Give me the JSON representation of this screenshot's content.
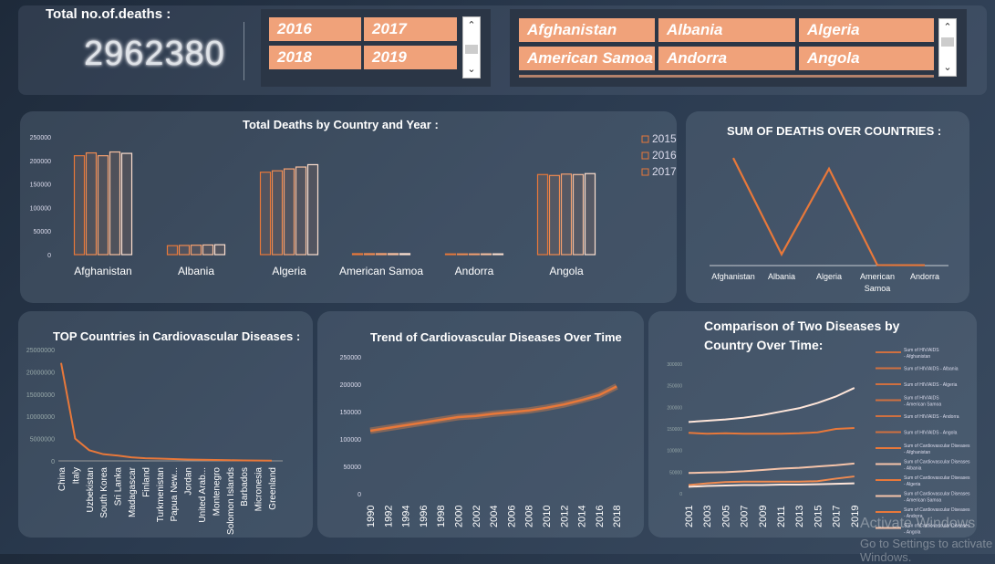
{
  "kpi": {
    "title": "Total no.of.deaths  :",
    "value": "2962380"
  },
  "year_slicer": {
    "items": [
      "2016",
      "2017",
      "2018",
      "2019"
    ]
  },
  "country_slicer": {
    "items": [
      "Afghanistan",
      "Albania",
      "Algeria",
      "American Samoa",
      "Andorra",
      "Angola"
    ]
  },
  "colors": {
    "accent": "#f0a27a",
    "line": "#e8783a",
    "light_line": "#f6c4aa",
    "pale_line": "#ffe6da"
  },
  "charts": {
    "by_country_year": {
      "title": "Total Deaths by Country and Year :",
      "legend": [
        "2015",
        "2016",
        "2017"
      ]
    },
    "sum_over_countries": {
      "title": "SUM OF DEATHS OVER COUNTRIES :"
    },
    "top_cardio": {
      "title": "TOP Countries in Cardiovascular Diseases  :"
    },
    "cardio_trend": {
      "title": "Trend of Cardiovascular Diseases Over Time"
    },
    "two_diseases": {
      "title_line1": "Comparison of Two Diseases by",
      "title_line2": "Country Over Time:"
    }
  },
  "chart_data": [
    {
      "type": "bar",
      "categories": [
        "Afghanistan",
        "Albania",
        "Algeria",
        "American Samoa",
        "Andorra",
        "Angola"
      ],
      "series": [
        {
          "name": "2015",
          "values": [
            210000,
            19000,
            175000,
            2000,
            1500,
            170000
          ]
        },
        {
          "name": "2016",
          "values": [
            216000,
            19500,
            178000,
            2000,
            1500,
            168000
          ]
        },
        {
          "name": "2017",
          "values": [
            210000,
            20000,
            182000,
            2100,
            1500,
            171000
          ]
        },
        {
          "values": [
            218000,
            20500,
            186000,
            2100,
            1600,
            170000
          ]
        },
        {
          "values": [
            215000,
            21000,
            191000,
            2100,
            1600,
            172000
          ]
        }
      ],
      "ylim": [
        0,
        250000
      ],
      "yticks": [
        "0",
        "50000",
        "100000",
        "150000",
        "200000",
        "250000"
      ],
      "legend_position": "top-right"
    },
    {
      "type": "line",
      "categories": [
        "Afghanistan",
        "Albania",
        "Algeria",
        "American Samoa",
        "Andorra"
      ],
      "values": [
        8550000,
        900000,
        7700000,
        40000,
        30000
      ],
      "ylim": [
        0,
        9500000
      ],
      "grid": false
    },
    {
      "type": "line",
      "categories": [
        "China",
        "Italy",
        "Uzbekistan",
        "South Korea",
        "Sri Lanka",
        "Madagascar",
        "Finland",
        "Turkmenistan",
        "Papua New...",
        "Jordan",
        "United Arab...",
        "Montenegro",
        "Solomon Islands",
        "Barbados",
        "Micronesia",
        "Greenland"
      ],
      "values": [
        22000000,
        5000000,
        2400000,
        1500000,
        1200000,
        800000,
        600000,
        500000,
        400000,
        300000,
        250000,
        200000,
        150000,
        100000,
        80000,
        50000
      ],
      "ylim": [
        0,
        25000000
      ],
      "yticks": [
        "0",
        "5000000",
        "10000000",
        "15000000",
        "20000000",
        "25000000"
      ]
    },
    {
      "type": "line",
      "x": [
        "1990",
        "1992",
        "1994",
        "1996",
        "1998",
        "2000",
        "2002",
        "2004",
        "2006",
        "2008",
        "2010",
        "2012",
        "2014",
        "2016",
        "2018"
      ],
      "values": [
        115000,
        120000,
        125000,
        130000,
        135000,
        140000,
        142000,
        146000,
        149000,
        152000,
        157000,
        163000,
        171000,
        180000,
        196000
      ],
      "ylim": [
        0,
        250000
      ],
      "yticks": [
        "0",
        "50000",
        "100000",
        "150000",
        "200000",
        "250000"
      ]
    },
    {
      "type": "line",
      "x": [
        "2001",
        "2003",
        "2005",
        "2007",
        "2009",
        "2011",
        "2013",
        "2015",
        "2017",
        "2019"
      ],
      "legend": [
        "Sum of HIV/AIDS - Afghanistan",
        "Sum of HIV/AIDS - Albania",
        "Sum of HIV/AIDS - Algeria",
        "Sum of HIV/AIDS - American Samoa",
        "Sum of HIV/AIDS - Andorra",
        "Sum of HIV/AIDS - Angola",
        "Sum of Cardiovascular Diseases - Afghanistan",
        "Sum of Cardiovascular Diseases - Albania",
        "Sum of Cardiovascular Diseases - Algeria",
        "Sum of Cardiovascular Diseases - American Samoa",
        "Sum of Cardiovascular Diseases - Andorra",
        "Sum of Cardiovascular Diseases - Angola"
      ],
      "series": [
        {
          "name": "Sum of Cardiovascular Diseases - Algeria",
          "values": [
            166000,
            169000,
            172000,
            176000,
            182000,
            190000,
            198000,
            210000,
            225000,
            245000
          ]
        },
        {
          "name": "Sum of Cardiovascular Diseases - Afghanistan",
          "values": [
            141000,
            139000,
            140000,
            139000,
            139000,
            139000,
            140000,
            142000,
            150000,
            152000
          ]
        },
        {
          "name": "Sum of Cardiovascular Diseases - Angola",
          "values": [
            48000,
            49000,
            50000,
            52000,
            55000,
            58000,
            60000,
            63000,
            66000,
            70000
          ]
        },
        {
          "name": "Sum of HIV/AIDS - Angola",
          "values": [
            20000,
            24000,
            27000,
            28000,
            28000,
            28000,
            28000,
            29000,
            35000,
            40000
          ]
        },
        {
          "name": "Sum of Cardiovascular Diseases - Albania",
          "values": [
            16000,
            18000,
            19000,
            20000,
            20000,
            21000,
            21000,
            22000,
            23000,
            24000
          ]
        }
      ],
      "ylim": [
        0,
        300000
      ],
      "yticks": [
        "0",
        "50000",
        "100000",
        "150000",
        "200000",
        "250000",
        "300000"
      ]
    }
  ],
  "watermark": {
    "line1": "Activate Windows",
    "line2": "Go to Settings to activate Windows."
  }
}
